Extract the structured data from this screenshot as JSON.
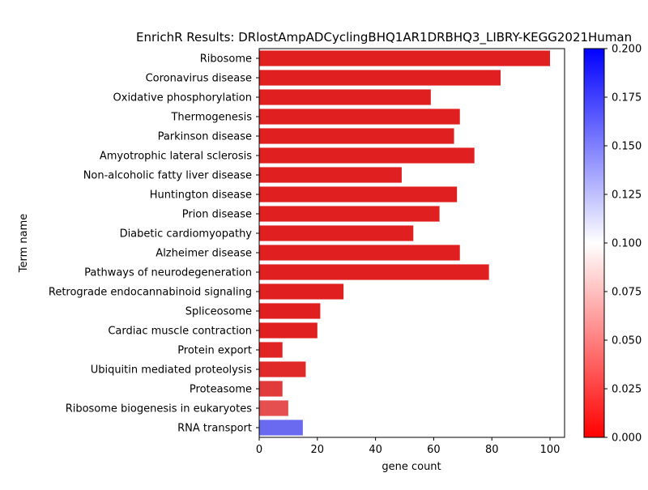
{
  "chart_data": {
    "type": "bar",
    "orientation": "horizontal",
    "title": "EnrichR Results: DRlostAmpADCyclingBHQ1AR1DRBHQ3_LIBRY-KEGG2021Human",
    "xlabel": "gene count",
    "ylabel": "Term name",
    "xlim": [
      0,
      105
    ],
    "xticks": [
      0,
      20,
      40,
      60,
      80,
      100
    ],
    "grid": false,
    "categories": [
      "Ribosome",
      "Coronavirus disease",
      "Oxidative phosphorylation",
      "Thermogenesis",
      "Parkinson disease",
      "Amyotrophic lateral sclerosis",
      "Non-alcoholic fatty liver disease",
      "Huntington disease",
      "Prion disease",
      "Diabetic cardiomyopathy",
      "Alzheimer disease",
      "Pathways of neurodegeneration",
      "Retrograde endocannabinoid signaling",
      "Spliceosome",
      "Cardiac muscle contraction",
      "Protein export",
      "Ubiquitin mediated proteolysis",
      "Proteasome",
      "Ribosome biogenesis in eukaryotes",
      "RNA transport"
    ],
    "values": [
      100,
      83,
      59,
      69,
      67,
      74,
      49,
      68,
      62,
      53,
      69,
      79,
      29,
      21,
      20,
      8,
      16,
      8,
      10,
      15
    ],
    "bar_colors": [
      "#e02020",
      "#e02020",
      "#e02020",
      "#e02020",
      "#e02020",
      "#e02020",
      "#e02020",
      "#e02020",
      "#e02020",
      "#e02020",
      "#e02020",
      "#e02020",
      "#e02020",
      "#e02020",
      "#e02020",
      "#e02323",
      "#e02a2a",
      "#e13a3a",
      "#e54f4f",
      "#6a6af0"
    ],
    "colorbar": {
      "range": [
        0,
        0.2
      ],
      "ticks": [
        "0.000",
        "0.025",
        "0.050",
        "0.075",
        "0.100",
        "0.125",
        "0.150",
        "0.175",
        "0.200"
      ],
      "colors": [
        "#ff0000",
        "#ffffff",
        "#0000ff"
      ]
    }
  }
}
